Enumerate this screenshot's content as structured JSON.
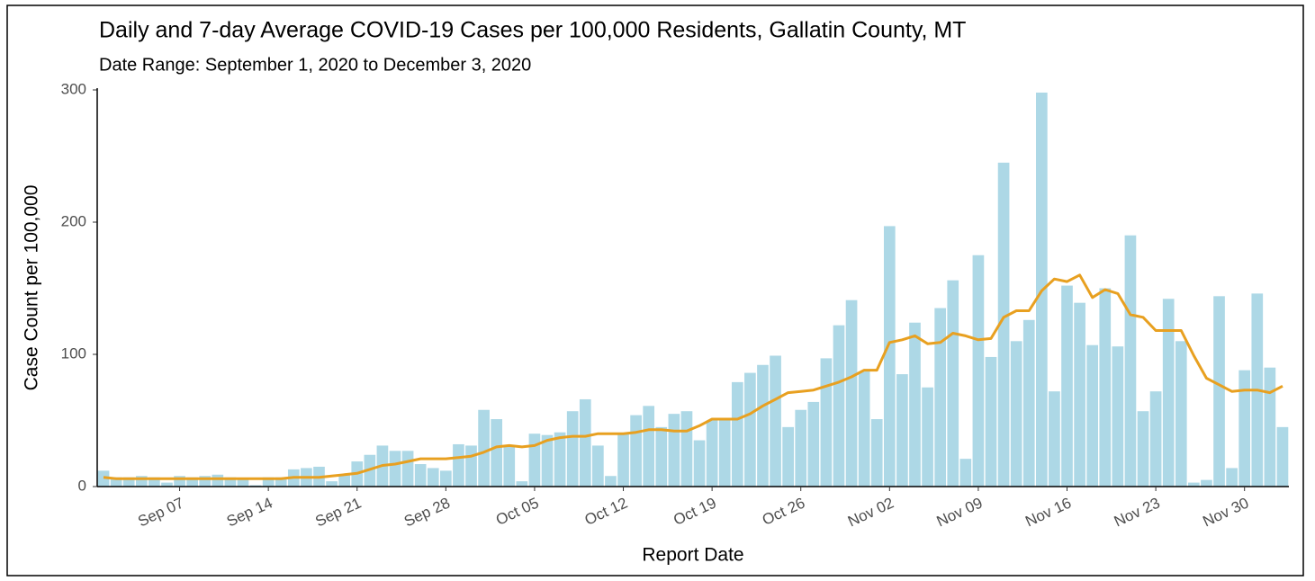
{
  "chart_data": {
    "type": "bar",
    "title": "Daily and 7-day Average COVID-19 Cases per 100,000 Residents, Gallatin County, MT",
    "subtitle": "Date Range: September 1, 2020 to December 3, 2020",
    "x_label": "Report Date",
    "y_label": "Case Count per 100,000",
    "categories": [
      null,
      null,
      null,
      null,
      null,
      null,
      "Sep 07",
      null,
      null,
      null,
      null,
      null,
      null,
      "Sep 14",
      null,
      null,
      null,
      null,
      null,
      null,
      "Sep 21",
      null,
      null,
      null,
      null,
      null,
      null,
      "Sep 28",
      null,
      null,
      null,
      null,
      null,
      null,
      "Oct 05",
      null,
      null,
      null,
      null,
      null,
      null,
      "Oct 12",
      null,
      null,
      null,
      null,
      null,
      null,
      "Oct 19",
      null,
      null,
      null,
      null,
      null,
      null,
      "Oct 26",
      null,
      null,
      null,
      null,
      null,
      null,
      "Nov 02",
      null,
      null,
      null,
      null,
      null,
      null,
      "Nov 09",
      null,
      null,
      null,
      null,
      null,
      null,
      "Nov 16",
      null,
      null,
      null,
      null,
      null,
      null,
      "Nov 23",
      null,
      null,
      null,
      null,
      null,
      null,
      "Nov 30",
      null,
      null,
      null
    ],
    "series": [
      {
        "type": "bar",
        "color": "#add8e6",
        "values": [
          12,
          7,
          7,
          8,
          7,
          3,
          8,
          7,
          8,
          9,
          7,
          6,
          1,
          7,
          7,
          13,
          14,
          15,
          4,
          9,
          19,
          24,
          31,
          27,
          27,
          17,
          14,
          12,
          32,
          31,
          58,
          51,
          30,
          4,
          40,
          39,
          41,
          57,
          66,
          31,
          8,
          40,
          54,
          61,
          45,
          55,
          57,
          35,
          50,
          50,
          79,
          86,
          92,
          99,
          45,
          58,
          64,
          97,
          122,
          141,
          87,
          51,
          197,
          85,
          124,
          75,
          135,
          156,
          21,
          175,
          98,
          245,
          110,
          126,
          298,
          72,
          152,
          139,
          107,
          150,
          106,
          190,
          57,
          72,
          142,
          110,
          3,
          5,
          144,
          14,
          88,
          146,
          90,
          45
        ]
      },
      {
        "type": "line",
        "color": "#e8a020",
        "values": [
          7,
          6,
          6,
          6,
          6,
          6,
          6,
          6,
          6,
          6,
          6,
          6,
          6,
          6,
          6,
          7,
          7,
          7,
          8,
          9,
          10,
          13,
          16,
          17,
          19,
          21,
          21,
          21,
          22,
          23,
          26,
          30,
          31,
          30,
          31,
          35,
          37,
          38,
          38,
          40,
          40,
          40,
          41,
          43,
          43,
          42,
          42,
          46,
          51,
          51,
          51,
          55,
          61,
          66,
          71,
          72,
          73,
          76,
          79,
          83,
          88,
          88,
          109,
          111,
          114,
          108,
          109,
          116,
          114,
          111,
          112,
          128,
          133,
          133,
          148,
          157,
          155,
          160,
          143,
          149,
          146,
          130,
          128,
          118,
          118,
          118,
          99,
          82,
          77,
          72,
          73,
          73,
          71,
          76
        ]
      }
    ],
    "ylim": [
      0,
      300
    ],
    "yticks": [
      0,
      100,
      200,
      300
    ]
  }
}
